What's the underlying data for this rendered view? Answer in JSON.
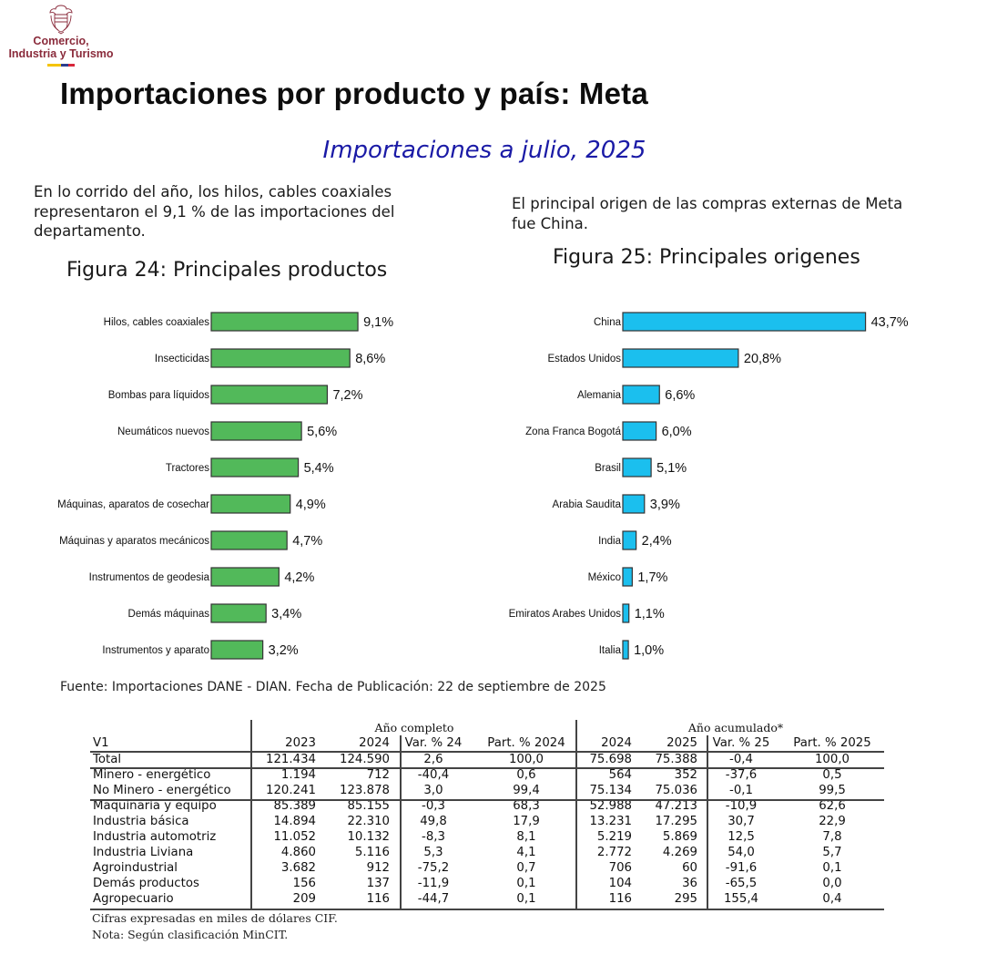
{
  "logo": {
    "line1": "Comercio,",
    "line2": "Industria y Turismo",
    "flag_colors": [
      "#f5c400",
      "#2a3d8f",
      "#d8263a"
    ],
    "icon": "coat-of-arms-icon"
  },
  "header": {
    "title": "Importaciones por producto y país: Meta",
    "subtitle": "Importaciones a julio, 2025"
  },
  "intro": {
    "left": "En lo corrido del año, los hilos, cables coaxiales representaron el 9,1 % de las importaciones del departamento.",
    "right": "El principal origen de las compras externas de Meta fue China."
  },
  "colors": {
    "products_bar": "#52b95a",
    "origins_bar": "#1bbfee",
    "subtitle": "#1a1aa6",
    "logo_text": "#8a2b3b"
  },
  "chart_data": [
    {
      "type": "bar",
      "orientation": "horizontal",
      "title": "Figura 24: Principales productos",
      "xlabel": "",
      "ylabel": "",
      "unit": "%",
      "xlim": [
        0,
        10
      ],
      "grid": false,
      "categories": [
        "Hilos, cables coaxiales",
        "Insecticidas",
        "Bombas para líquidos",
        "Neumáticos nuevos",
        "Tractores",
        "Máquinas, aparatos de cosechar",
        "Máquinas y aparatos mecánicos",
        "Instrumentos de geodesia",
        "Demás máquinas",
        "Instrumentos y aparato"
      ],
      "values": [
        9.1,
        8.6,
        7.2,
        5.6,
        5.4,
        4.9,
        4.7,
        4.2,
        3.4,
        3.2
      ],
      "labels": [
        "9,1%",
        "8,6%",
        "7,2%",
        "5,6%",
        "5,4%",
        "4,9%",
        "4,7%",
        "4,2%",
        "3,4%",
        "3,2%"
      ]
    },
    {
      "type": "bar",
      "orientation": "horizontal",
      "title": "Figura 25: Principales origenes",
      "xlabel": "",
      "ylabel": "",
      "unit": "%",
      "xlim": [
        0,
        45
      ],
      "grid": false,
      "categories": [
        "China",
        "Estados Unidos",
        "Alemania",
        "Zona Franca Bogotá",
        "Brasil",
        "Arabia Saudita",
        "India",
        "México",
        "Emiratos Arabes Unidos",
        "Italia"
      ],
      "values": [
        43.7,
        20.8,
        6.6,
        6.0,
        5.1,
        3.9,
        2.4,
        1.7,
        1.1,
        1.0
      ],
      "labels": [
        "43,7%",
        "20,8%",
        "6,6%",
        "6,0%",
        "5,1%",
        "3,9%",
        "2,4%",
        "1,7%",
        "1,1%",
        "1,0%"
      ]
    }
  ],
  "source": "Fuente: Importaciones DANE - DIAN. Fecha de Publicación: 22 de septiembre de 2025",
  "table": {
    "group_headers": [
      "Año completo",
      "Año acumulado*"
    ],
    "columns": [
      "V1",
      "2023",
      "2024",
      "Var. % 24",
      "Part. % 2024",
      "2024",
      "2025",
      "Var. % 25",
      "Part. % 2025"
    ],
    "rows": [
      [
        "Total",
        "121.434",
        "124.590",
        "2,6",
        "100,0",
        "75.698",
        "75.388",
        "-0,4",
        "100,0"
      ],
      [
        "Minero - energético",
        "1.194",
        "712",
        "-40,4",
        "0,6",
        "564",
        "352",
        "-37,6",
        "0,5"
      ],
      [
        "No Minero - energético",
        "120.241",
        "123.878",
        "3,0",
        "99,4",
        "75.134",
        "75.036",
        "-0,1",
        "99,5"
      ],
      [
        "Maquinaria y equipo",
        "85.389",
        "85.155",
        "-0,3",
        "68,3",
        "52.988",
        "47.213",
        "-10,9",
        "62,6"
      ],
      [
        "Industria básica",
        "14.894",
        "22.310",
        "49,8",
        "17,9",
        "13.231",
        "17.295",
        "30,7",
        "22,9"
      ],
      [
        "Industria automotriz",
        "11.052",
        "10.132",
        "-8,3",
        "8,1",
        "5.219",
        "5.869",
        "12,5",
        "7,8"
      ],
      [
        "Industria Liviana",
        "4.860",
        "5.116",
        "5,3",
        "4,1",
        "2.772",
        "4.269",
        "54,0",
        "5,7"
      ],
      [
        "Agroindustrial",
        "3.682",
        "912",
        "-75,2",
        "0,7",
        "706",
        "60",
        "-91,6",
        "0,1"
      ],
      [
        "Demás productos",
        "156",
        "137",
        "-11,9",
        "0,1",
        "104",
        "36",
        "-65,5",
        "0,0"
      ],
      [
        "Agropecuario",
        "209",
        "116",
        "-44,7",
        "0,1",
        "116",
        "295",
        "155,4",
        "0,4"
      ]
    ],
    "notes": [
      "Cifras expresadas en miles de dólares CIF.",
      "Nota: Según clasificación MinCIT."
    ]
  }
}
